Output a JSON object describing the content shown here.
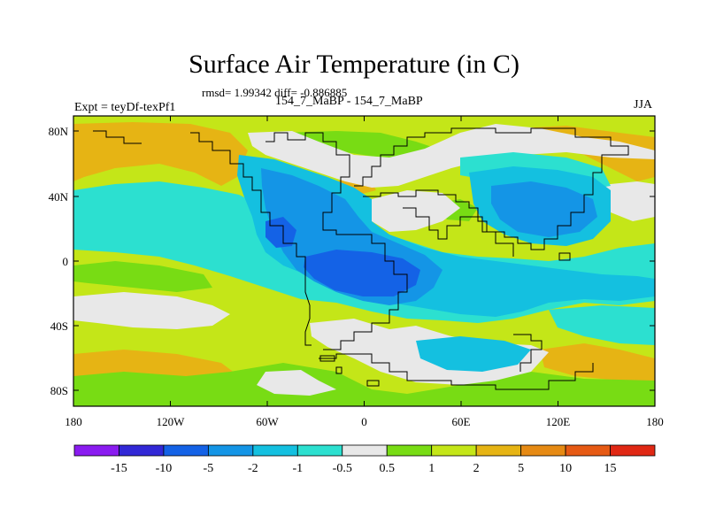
{
  "title": "Surface Air Temperature (in C)",
  "stats": "rmsd= 1.99342 diff= -0.886885",
  "experiment": "Expt = teyDf-texPf1",
  "cases": "154_7_MaBP - 154_7_MaBP",
  "season": "JJA",
  "map": {
    "lon_ticks": [
      "180",
      "120W",
      "60W",
      "0",
      "60E",
      "120E",
      "180"
    ],
    "lat_ticks": [
      "80N",
      "40N",
      "0",
      "40S",
      "80S"
    ]
  },
  "colorbar": {
    "labels": [
      "-15",
      "-10",
      "-5",
      "-2",
      "-1",
      "-0.5",
      "0.5",
      "1",
      "2",
      "5",
      "10",
      "15"
    ],
    "colors": [
      "#8a1cf0",
      "#3228d6",
      "#1462e6",
      "#1495e6",
      "#14c0e0",
      "#2ce0d0",
      "#e8e8e8",
      "#78dc14",
      "#c4e618",
      "#e6b414",
      "#e68a14",
      "#e65a14",
      "#e02814"
    ]
  }
}
